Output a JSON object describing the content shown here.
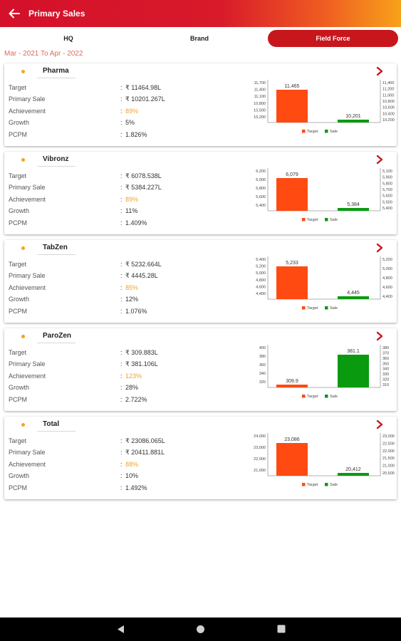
{
  "header": {
    "title": "Primary Sales",
    "back_icon": "arrow-left-icon"
  },
  "tabs": [
    {
      "label": "HQ",
      "active": false
    },
    {
      "label": "Brand",
      "active": false
    },
    {
      "label": "Field Force",
      "active": true
    }
  ],
  "date_range": "Mar - 2021 To Apr - 2022",
  "colors": {
    "target": "#ff4a12",
    "sale": "#0a9a10",
    "accent": "#c8161d",
    "achievement": "#f3a325"
  },
  "row_labels": {
    "target": "Target",
    "primary_sale": "Primary Sale",
    "achievement": "Achievement",
    "growth": "Growth",
    "pcpm": "PCPM"
  },
  "cards": [
    {
      "name": "Pharma",
      "target": "₹ 11464.98L",
      "primary_sale": "₹ 10201.267L",
      "achievement": "89%",
      "growth": "5%",
      "pcpm": "1.826%"
    },
    {
      "name": "Vibronz",
      "target": "₹ 6078.538L",
      "primary_sale": "₹ 5384.227L",
      "achievement": "89%",
      "growth": "11%",
      "pcpm": "1.409%"
    },
    {
      "name": "TabZen",
      "target": "₹ 5232.664L",
      "primary_sale": "₹ 4445.28L",
      "achievement": "85%",
      "growth": "12%",
      "pcpm": "1.076%"
    },
    {
      "name": "ParoZen",
      "target": "₹ 309.883L",
      "primary_sale": "₹ 381.106L",
      "achievement": "123%",
      "growth": "28%",
      "pcpm": "2.722%"
    },
    {
      "name": "Total",
      "target": "₹ 23086.065L",
      "primary_sale": "₹ 20411.881L",
      "achievement": "88%",
      "growth": "10%",
      "pcpm": "1.492%"
    }
  ],
  "chart_data": [
    {
      "type": "bar",
      "categories": [
        "Target",
        "Sale"
      ],
      "values": [
        11465,
        10201
      ],
      "labels": [
        "11,465",
        "10,201"
      ],
      "left_ticks": [
        "11,700",
        "11,400",
        "11,100",
        "10,800",
        "10,500",
        "10,200"
      ],
      "right_ticks": [
        "11,400",
        "11,200",
        "11,000",
        "10,800",
        "10,600",
        "10,400",
        "10,200"
      ],
      "legend": [
        "Target",
        "Sale"
      ]
    },
    {
      "type": "bar",
      "categories": [
        "Target",
        "Sale"
      ],
      "values": [
        6079,
        5384
      ],
      "labels": [
        "6,079",
        "5,384"
      ],
      "left_ticks": [
        "6,200",
        "6,000",
        "5,800",
        "5,600",
        "5,400"
      ],
      "right_ticks": [
        "5,100",
        "5,900",
        "5,800",
        "5,700",
        "5,600",
        "5,500",
        "5,400"
      ],
      "legend": [
        "Target",
        "Sale"
      ]
    },
    {
      "type": "bar",
      "categories": [
        "Target",
        "Sale"
      ],
      "values": [
        5233,
        4445
      ],
      "labels": [
        "5,233",
        "4,445"
      ],
      "left_ticks": [
        "5,400",
        "5,200",
        "5,000",
        "4,800",
        "4,600",
        "4,400"
      ],
      "right_ticks": [
        "5,200",
        "5,000",
        "4,800",
        "4,600",
        "4,400"
      ],
      "legend": [
        "Target",
        "Sale"
      ]
    },
    {
      "type": "bar",
      "categories": [
        "Target",
        "Sale"
      ],
      "values": [
        309.9,
        381.1
      ],
      "labels": [
        "309.9",
        "381.1"
      ],
      "left_ticks": [
        "400",
        "380",
        "360",
        "340",
        "320"
      ],
      "right_ticks": [
        "380",
        "370",
        "360",
        "350",
        "340",
        "330",
        "320",
        "310"
      ],
      "legend": [
        "Target",
        "Sale"
      ]
    },
    {
      "type": "bar",
      "categories": [
        "Target",
        "Sale"
      ],
      "values": [
        23086,
        20412
      ],
      "labels": [
        "23,086",
        "20,412"
      ],
      "left_ticks": [
        "24,000",
        "23,000",
        "22,000",
        "21,000"
      ],
      "right_ticks": [
        "23,000",
        "22,500",
        "22,000",
        "21,500",
        "21,000",
        "20,500"
      ],
      "legend": [
        "Target",
        "Sale"
      ]
    }
  ],
  "nav": {
    "back_icon": "nav-back-icon",
    "home_icon": "nav-home-icon",
    "recents_icon": "nav-recents-icon"
  }
}
